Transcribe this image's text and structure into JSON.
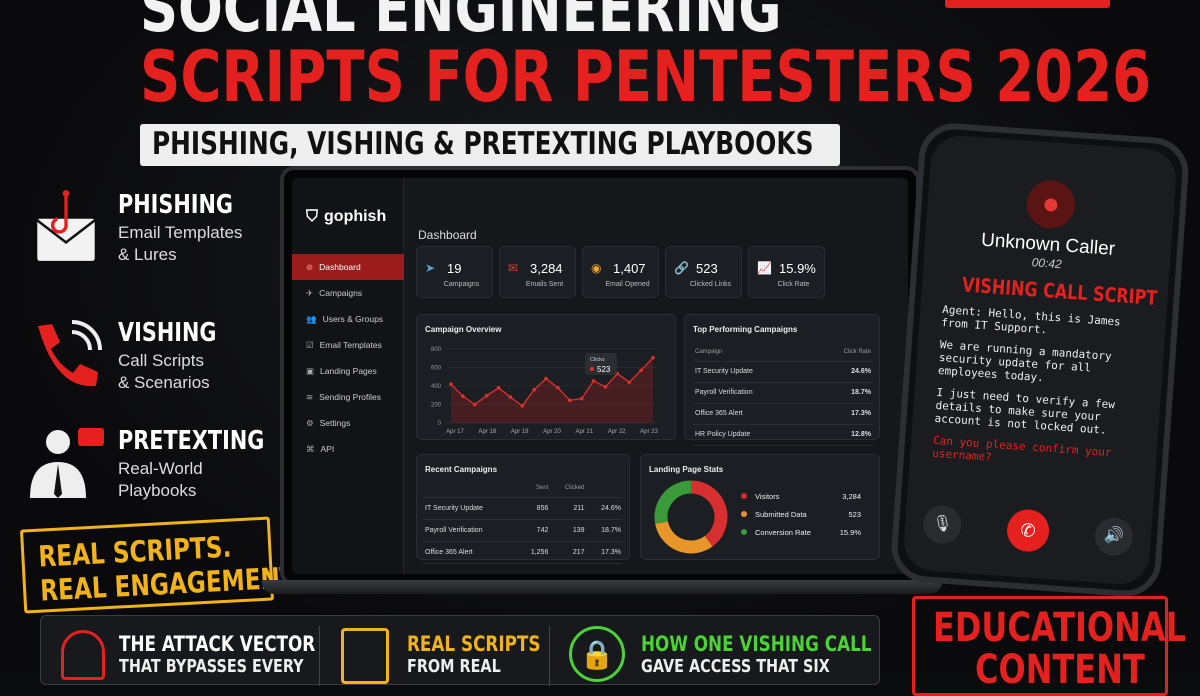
{
  "headline": {
    "line1": "SOCIAL ENGINEERING",
    "line2": "SCRIPTS FOR PENTESTERS 2026",
    "subtitle": "PHISHING, VISHING & PRETEXTING PLAYBOOKS"
  },
  "features": [
    {
      "title": "PHISHING",
      "desc1": "Email Templates",
      "desc2": "& Lures",
      "icon": "envelope-hook-icon"
    },
    {
      "title": "VISHING",
      "desc1": "Call Scripts",
      "desc2": "& Scenarios",
      "icon": "phone-icon"
    },
    {
      "title": "PRETEXTING",
      "desc1": "Real-World",
      "desc2": "Playbooks",
      "icon": "businessman-chat-icon"
    }
  ],
  "stamp": {
    "line1": "REAL SCRIPTS.",
    "line2": "REAL ENGAGEMENTS."
  },
  "dashboard": {
    "brand": "gophish",
    "nav": [
      "Dashboard",
      "Campaigns",
      "Users & Groups",
      "Email Templates",
      "Landing Pages",
      "Sending Profiles",
      "Settings",
      "API"
    ],
    "title": "Dashboard",
    "stats": [
      {
        "value": "19",
        "label": "Campaigns",
        "icon": "paper-plane-icon",
        "color": "#5aa0d8"
      },
      {
        "value": "3,284",
        "label": "Emails Sent",
        "icon": "envelope-icon",
        "color": "#e0403a"
      },
      {
        "value": "1,407",
        "label": "Email Opened",
        "icon": "eye-icon",
        "color": "#e8a030"
      },
      {
        "value": "523",
        "label": "Clicked Links",
        "icon": "link-icon",
        "color": "#4caf50"
      },
      {
        "value": "15.9%",
        "label": "Click Rate",
        "icon": "chart-icon",
        "color": "#5aa0d8"
      }
    ],
    "overview": {
      "title": "Campaign Overview",
      "tooltip_label": "Clicks",
      "tooltip_value": "523"
    },
    "top": {
      "title": "Top Performing Campaigns",
      "headers": [
        "Campaign",
        "Click Rate"
      ],
      "rows": [
        [
          "IT Security Update",
          "24.6%"
        ],
        [
          "Payroll Verification",
          "18.7%"
        ],
        [
          "Office 365 Alert",
          "17.3%"
        ],
        [
          "HR Policy Update",
          "12.8%"
        ]
      ]
    },
    "recent": {
      "title": "Recent Campaigns",
      "headers": [
        "",
        "Sent",
        "Clicked",
        ""
      ],
      "rows": [
        [
          "IT Security Update",
          "856",
          "211",
          "24.6%"
        ],
        [
          "Payroll Verification",
          "742",
          "139",
          "18.7%"
        ],
        [
          "Office 365 Alert",
          "1,256",
          "217",
          "17.3%"
        ]
      ]
    },
    "landing": {
      "title": "Landing Page Stats",
      "items": [
        {
          "label": "Visitors",
          "value": "3,284",
          "color": "#d83030"
        },
        {
          "label": "Submitted Data",
          "value": "523",
          "color": "#e8962a"
        },
        {
          "label": "Conversion Rate",
          "value": "15.9%",
          "color": "#3a9a3a"
        }
      ]
    }
  },
  "chart_data": {
    "type": "area",
    "title": "Campaign Overview",
    "x_ticks": [
      "Apr 17",
      "Apr 18",
      "Apr 19",
      "Apr 20",
      "Apr 21",
      "Apr 22",
      "Apr 23"
    ],
    "y_ticks": [
      0,
      200,
      400,
      600,
      800
    ],
    "ylim": [
      0,
      800
    ],
    "values": [
      420,
      290,
      200,
      295,
      380,
      280,
      185,
      360,
      480,
      380,
      245,
      265,
      455,
      390,
      535,
      440,
      570,
      705
    ],
    "color": "#e0302a",
    "donut": [
      {
        "label": "Visitors",
        "share": 0.4,
        "color": "#d83030"
      },
      {
        "label": "Submitted Data",
        "share": 0.32,
        "color": "#e8962a"
      },
      {
        "label": "Conversion Rate",
        "share": 0.28,
        "color": "#3a9a3a"
      }
    ]
  },
  "phone": {
    "caller": "Unknown Caller",
    "time": "00:42",
    "script_title": "VISHING CALL SCRIPT",
    "lines": [
      "Agent: Hello, this is James from IT Support.",
      "We are running a mandatory security update for all employees today.",
      "I just need to verify a few details to make sure your account is not locked out."
    ],
    "question": "Can you please confirm your username?"
  },
  "bottom": [
    {
      "a": "THE ATTACK VECTOR",
      "b": "THAT BYPASSES EVERY",
      "color": "#ffffff",
      "icon": "hacker-icon"
    },
    {
      "a": "REAL SCRIPTS",
      "b": "FROM REAL",
      "color": "#f2b21a",
      "icon": "document-icon"
    },
    {
      "a": "HOW ONE VISHING CALL",
      "b": "GAVE ACCESS THAT SIX",
      "color": "#4cd137",
      "icon": "lock-icon"
    }
  ],
  "edu": {
    "line1": "EDUCATIONAL",
    "line2": "CONTENT"
  }
}
